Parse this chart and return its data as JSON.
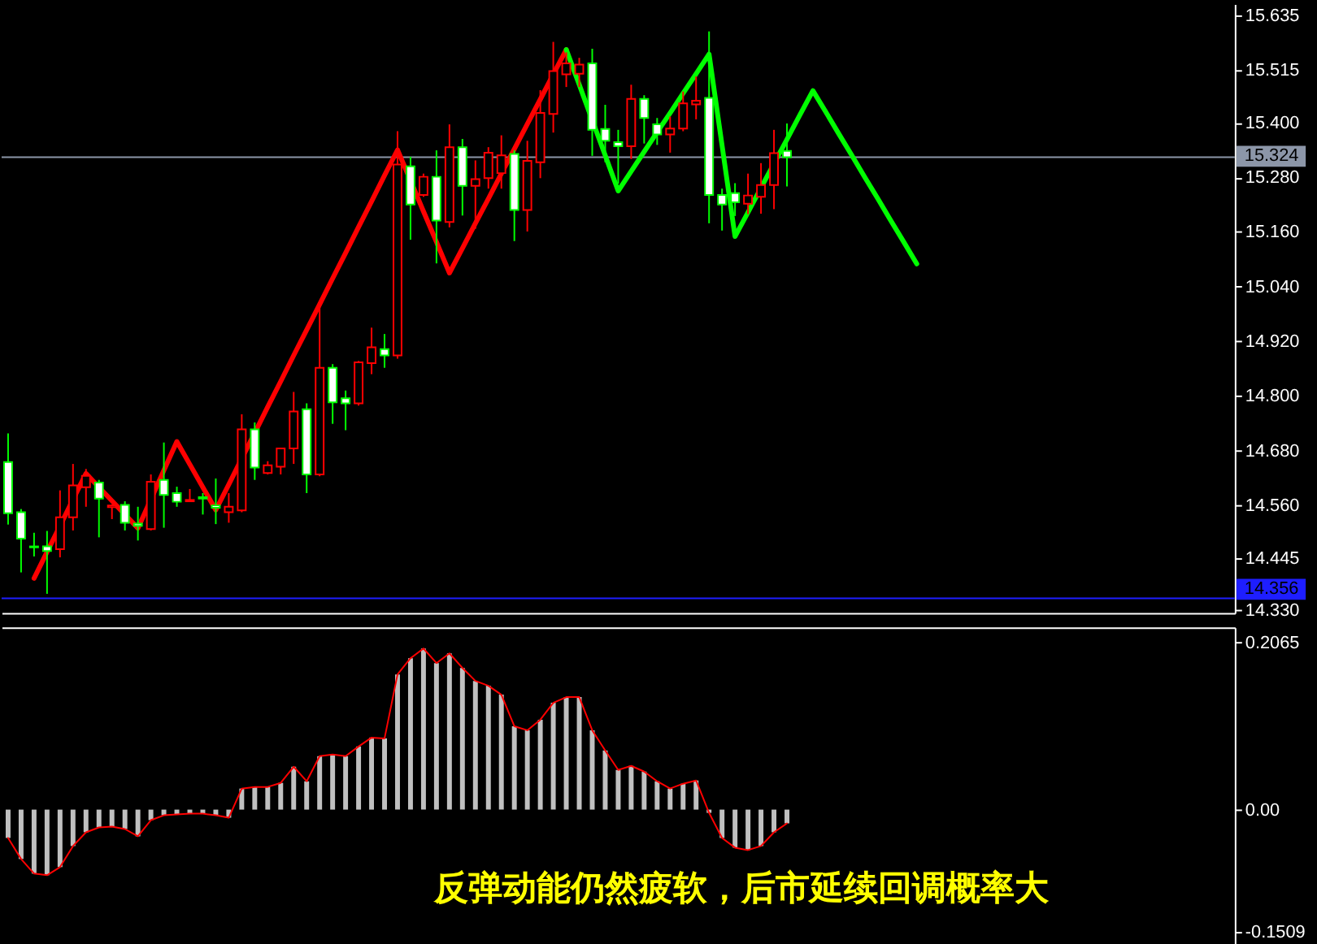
{
  "chart_data": [
    {
      "type": "candlestick",
      "categories": [
        null,
        null,
        null,
        null,
        null,
        null,
        null,
        null,
        null,
        null,
        null,
        null,
        null,
        null,
        null,
        null,
        null,
        null,
        null,
        null,
        null,
        null,
        null,
        null,
        null,
        null,
        null,
        null,
        null,
        null,
        null,
        null,
        null,
        null,
        null,
        null,
        null,
        null,
        null,
        null,
        null,
        null,
        null,
        null,
        null,
        null,
        null,
        null,
        null,
        null,
        null,
        null,
        null,
        null,
        null,
        null,
        null,
        null,
        null,
        null,
        null,
        null,
        null,
        null,
        null,
        null,
        null,
        null,
        null,
        null,
        null,
        null,
        null,
        null,
        null,
        null,
        null,
        null,
        null,
        null,
        null,
        null,
        null,
        null,
        null,
        null,
        null,
        null,
        null,
        null,
        null,
        null,
        null,
        null,
        null
      ],
      "ohlc": [
        [
          14.655,
          14.718,
          14.518,
          14.543
        ],
        [
          14.545,
          14.552,
          14.413,
          14.487
        ],
        [
          14.47,
          14.5,
          14.448,
          14.468
        ],
        [
          14.47,
          14.504,
          14.366,
          14.46
        ],
        [
          14.464,
          14.593,
          14.446,
          14.534
        ],
        [
          14.534,
          14.651,
          14.505,
          14.604
        ],
        [
          14.6,
          14.64,
          14.557,
          14.625
        ],
        [
          14.61,
          14.616,
          14.49,
          14.575
        ],
        [
          14.556,
          14.562,
          14.53,
          14.56
        ],
        [
          14.561,
          14.569,
          14.505,
          14.522
        ],
        [
          14.52,
          14.557,
          14.483,
          14.515
        ],
        [
          14.508,
          14.628,
          14.505,
          14.612
        ],
        [
          14.616,
          14.698,
          14.511,
          14.583
        ],
        [
          14.587,
          14.601,
          14.557,
          14.568
        ],
        [
          14.569,
          14.596,
          14.568,
          14.572
        ],
        [
          14.578,
          14.587,
          14.54,
          14.575
        ],
        [
          14.56,
          14.619,
          14.519,
          14.555
        ],
        [
          14.545,
          14.587,
          14.522,
          14.557
        ],
        [
          14.549,
          14.76,
          14.545,
          14.727
        ],
        [
          14.727,
          14.742,
          14.616,
          14.643
        ],
        [
          14.631,
          14.657,
          14.628,
          14.648
        ],
        [
          14.645,
          14.686,
          14.628,
          14.685
        ],
        [
          14.685,
          14.809,
          14.651,
          14.766
        ],
        [
          14.771,
          14.784,
          14.587,
          14.628
        ],
        [
          14.628,
          15.009,
          14.624,
          14.862
        ],
        [
          14.862,
          14.87,
          14.739,
          14.786
        ],
        [
          14.795,
          14.812,
          14.725,
          14.784
        ],
        [
          14.784,
          14.877,
          14.779,
          14.874
        ],
        [
          14.872,
          14.95,
          14.848,
          14.907
        ],
        [
          14.903,
          14.936,
          14.862,
          14.889
        ],
        [
          14.889,
          15.381,
          14.882,
          15.308
        ],
        [
          15.304,
          15.325,
          15.143,
          15.22
        ],
        [
          15.241,
          15.288,
          15.237,
          15.281
        ],
        [
          15.281,
          15.339,
          15.091,
          15.185
        ],
        [
          15.182,
          15.396,
          15.17,
          15.346
        ],
        [
          15.346,
          15.364,
          15.196,
          15.261
        ],
        [
          15.261,
          15.317,
          15.167,
          15.276
        ],
        [
          15.278,
          15.346,
          15.255,
          15.334
        ],
        [
          15.289,
          15.372,
          15.255,
          15.328
        ],
        [
          15.331,
          15.339,
          15.14,
          15.208
        ],
        [
          15.208,
          15.36,
          15.161,
          15.316
        ],
        [
          15.313,
          15.471,
          15.278,
          15.421
        ],
        [
          15.419,
          15.577,
          15.378,
          15.513
        ],
        [
          15.506,
          15.554,
          15.478,
          15.53
        ],
        [
          15.507,
          15.542,
          15.478,
          15.527
        ],
        [
          15.53,
          15.562,
          15.327,
          15.384
        ],
        [
          15.386,
          15.439,
          15.313,
          15.36
        ],
        [
          15.357,
          15.384,
          15.266,
          15.348
        ],
        [
          15.348,
          15.483,
          15.32,
          15.452
        ],
        [
          15.452,
          15.46,
          15.354,
          15.41
        ],
        [
          15.396,
          15.41,
          15.351,
          15.374
        ],
        [
          15.374,
          15.413,
          15.334,
          15.387
        ],
        [
          15.387,
          15.468,
          15.381,
          15.442
        ],
        [
          15.44,
          15.501,
          15.407,
          15.448
        ],
        [
          15.454,
          15.6,
          15.179,
          15.241
        ],
        [
          15.241,
          15.255,
          15.163,
          15.22
        ],
        [
          15.245,
          15.267,
          15.195,
          15.225
        ],
        [
          15.222,
          15.288,
          15.199,
          15.24
        ],
        [
          15.237,
          15.311,
          15.2,
          15.263
        ],
        [
          15.263,
          15.384,
          15.21,
          15.333
        ],
        [
          15.338,
          15.398,
          15.26,
          15.324
        ],
        null,
        null,
        null,
        null,
        null,
        null,
        null,
        null,
        null,
        null,
        null,
        null,
        null,
        null,
        null,
        null,
        null,
        null,
        null,
        null,
        null,
        null,
        null,
        null,
        null,
        null,
        null,
        null,
        null,
        null,
        null,
        null,
        null,
        null
      ],
      "colors": [
        "#00ff00",
        "#00ff00",
        "#00ff00",
        "#00ff00",
        "#ff0000",
        "#ff0000",
        "#ff0000",
        "#00ff00",
        "#ff0000",
        "#00ff00",
        "#00ff00",
        "#ff0000",
        "#00ff00",
        "#00ff00",
        "#ff0000",
        "#00ff00",
        "#00ff00",
        "#ff0000",
        "#ff0000",
        "#00ff00",
        "#ff0000",
        "#ff0000",
        "#ff0000",
        "#00ff00",
        "#ff0000",
        "#00ff00",
        "#00ff00",
        "#ff0000",
        "#ff0000",
        "#00ff00",
        "#ff0000",
        "#00ff00",
        "#ff0000",
        "#00ff00",
        "#ff0000",
        "#00ff00",
        "#ff0000",
        "#ff0000",
        "#ff0000",
        "#00ff00",
        "#ff0000",
        "#ff0000",
        "#ff0000",
        "#ff0000",
        "#ff0000",
        "#00ff00",
        "#00ff00",
        "#00ff00",
        "#ff0000",
        "#00ff00",
        "#00ff00",
        "#ff0000",
        "#ff0000",
        "#ff0000",
        "#00ff00",
        "#00ff00",
        "#00ff00",
        "#ff0000",
        "#ff0000",
        "#ff0000",
        "#00ff00",
        null,
        null,
        null,
        null,
        null,
        null,
        null,
        null,
        null,
        null,
        null,
        null,
        null,
        null,
        null,
        null,
        null,
        null,
        null,
        null,
        null,
        null,
        null,
        null,
        null,
        null,
        null,
        null,
        null,
        null,
        null,
        null,
        null,
        null
      ],
      "series": [
        {
          "type": "line",
          "color": "#ff0000",
          "values": [
            null,
            null,
            14.4,
            14.458,
            14.515,
            14.573,
            14.63,
            14.6,
            14.57,
            14.54,
            14.51,
            14.573,
            14.637,
            14.7,
            14.65,
            14.6,
            14.55,
            14.606,
            14.663,
            14.719,
            14.776,
            14.832,
            14.889,
            14.945,
            15.001,
            15.058,
            15.114,
            15.171,
            15.227,
            15.284,
            15.34,
            15.273,
            15.205,
            15.138,
            15.07,
            15.124,
            15.179,
            15.233,
            15.288,
            15.342,
            15.397,
            15.451,
            15.506,
            15.56,
            null,
            null,
            null,
            null,
            null,
            null,
            null,
            null,
            null,
            null,
            null,
            null,
            null,
            null,
            null,
            null,
            null,
            null,
            null,
            null,
            null,
            null,
            null,
            null,
            null,
            null,
            null,
            null,
            null,
            null,
            null,
            null,
            null,
            null,
            null,
            null,
            null,
            null,
            null,
            null,
            null,
            null,
            null,
            null,
            null,
            null,
            null,
            null,
            null,
            null,
            null
          ]
        },
        {
          "type": "line",
          "color": "#00ff00",
          "values": [
            null,
            null,
            null,
            null,
            null,
            null,
            null,
            null,
            null,
            null,
            null,
            null,
            null,
            null,
            null,
            null,
            null,
            null,
            null,
            null,
            null,
            null,
            null,
            null,
            null,
            null,
            null,
            null,
            null,
            null,
            null,
            null,
            null,
            null,
            null,
            null,
            null,
            null,
            null,
            null,
            null,
            null,
            null,
            15.56,
            15.483,
            15.405,
            15.328,
            15.25,
            15.293,
            15.336,
            15.379,
            15.421,
            15.464,
            15.507,
            15.55,
            15.35,
            15.15,
            15.203,
            15.257,
            15.31,
            15.363,
            15.417,
            15.47,
            15.423,
            15.375,
            15.328,
            15.28,
            15.233,
            15.185,
            15.138,
            15.09,
            null,
            null,
            null,
            null,
            null,
            null,
            null,
            null,
            null,
            null,
            null,
            null,
            null,
            null,
            null,
            null,
            null,
            null,
            null,
            null,
            null,
            null,
            null,
            null
          ]
        }
      ],
      "ylim": [
        14.324,
        15.66
      ],
      "yticks": [
        15.635,
        15.515,
        {
          "value": 15.4,
          "label": "15.400"
        },
        {
          "value": 15.28,
          "label": "15.280"
        },
        {
          "value": 15.16,
          "label": "15.160"
        },
        {
          "value": 15.04,
          "label": "15.040"
        },
        {
          "value": 14.92,
          "label": "14.920"
        },
        {
          "value": 14.8,
          "label": "14.800"
        },
        {
          "value": 14.68,
          "label": "14.680"
        },
        {
          "value": 14.56,
          "label": "14.560"
        },
        14.445,
        {
          "value": 14.33,
          "label": "14.330"
        }
      ],
      "ref_lines": [
        {
          "axis": "y",
          "value": 15.324,
          "label": "15.324",
          "color": "#8c96a8"
        },
        {
          "axis": "y",
          "value": 14.356,
          "label": "14.356",
          "color": "#1e1eff"
        }
      ],
      "tick_labels": "y"
    },
    {
      "type": "bar",
      "categories": [
        null,
        null,
        null,
        null,
        null,
        null,
        null,
        null,
        null,
        null,
        null,
        null,
        null,
        null,
        null,
        null,
        null,
        null,
        null,
        null,
        null,
        null,
        null,
        null,
        null,
        null,
        null,
        null,
        null,
        null,
        null,
        null,
        null,
        null,
        null,
        null,
        null,
        null,
        null,
        null,
        null,
        null,
        null,
        null,
        null,
        null,
        null,
        null,
        null,
        null,
        null,
        null,
        null,
        null,
        null,
        null,
        null,
        null,
        null,
        null,
        null,
        null,
        null,
        null,
        null,
        null,
        null,
        null,
        null,
        null,
        null,
        null,
        null,
        null,
        null,
        null,
        null,
        null,
        null,
        null,
        null,
        null,
        null,
        null,
        null,
        null,
        null,
        null,
        null,
        null,
        null,
        null,
        null,
        null,
        null
      ],
      "series": [
        {
          "type": "bar",
          "color": "#c0c0c0",
          "values": [
            -0.035,
            -0.061,
            -0.079,
            -0.081,
            -0.071,
            -0.045,
            -0.028,
            -0.022,
            -0.021,
            -0.024,
            -0.033,
            -0.013,
            -0.007,
            -0.006,
            -0.005,
            -0.005,
            -0.007,
            -0.01,
            0.026,
            0.028,
            0.028,
            0.033,
            0.053,
            0.035,
            0.066,
            0.068,
            0.066,
            0.078,
            0.089,
            0.088,
            0.167,
            0.187,
            0.199,
            0.181,
            0.193,
            0.175,
            0.159,
            0.153,
            0.142,
            0.103,
            0.098,
            0.111,
            0.132,
            0.139,
            0.139,
            0.098,
            0.073,
            0.049,
            0.054,
            0.047,
            0.035,
            0.026,
            0.032,
            0.036,
            -0.004,
            -0.035,
            -0.047,
            -0.05,
            -0.045,
            -0.028,
            -0.017,
            null,
            null,
            null,
            null,
            null,
            null,
            null,
            null,
            null,
            null,
            null,
            null,
            null,
            null,
            null,
            null,
            null,
            null,
            null,
            null,
            null,
            null,
            null,
            null,
            null,
            null,
            null,
            null,
            null,
            null,
            null,
            null,
            null,
            null
          ]
        },
        {
          "type": "line",
          "color": "#ff0000",
          "values": [
            -0.035,
            -0.061,
            -0.079,
            -0.081,
            -0.071,
            -0.045,
            -0.028,
            -0.022,
            -0.021,
            -0.024,
            -0.033,
            -0.013,
            -0.007,
            -0.006,
            -0.005,
            -0.005,
            -0.007,
            -0.01,
            0.026,
            0.028,
            0.028,
            0.033,
            0.053,
            0.035,
            0.066,
            0.068,
            0.066,
            0.078,
            0.089,
            0.088,
            0.167,
            0.187,
            0.199,
            0.181,
            0.193,
            0.175,
            0.159,
            0.153,
            0.142,
            0.103,
            0.098,
            0.111,
            0.132,
            0.139,
            0.139,
            0.098,
            0.073,
            0.049,
            0.054,
            0.047,
            0.035,
            0.026,
            0.032,
            0.036,
            -0.004,
            -0.035,
            -0.047,
            -0.05,
            -0.045,
            -0.028,
            -0.017,
            null,
            null,
            null,
            null,
            null,
            null,
            null,
            null,
            null,
            null,
            null,
            null,
            null,
            null,
            null,
            null,
            null,
            null,
            null,
            null,
            null,
            null,
            null,
            null,
            null,
            null,
            null,
            null,
            null,
            null,
            null,
            null,
            null,
            null
          ]
        }
      ],
      "ylim": [
        -0.165,
        0.225
      ],
      "yticks": [
        0.2065,
        {
          "value": 0,
          "label": "0.00"
        },
        -0.1509
      ],
      "tick_labels": "y",
      "annotations": [
        "反弹动能仍然疲软，后市延续回调概率大"
      ]
    }
  ]
}
